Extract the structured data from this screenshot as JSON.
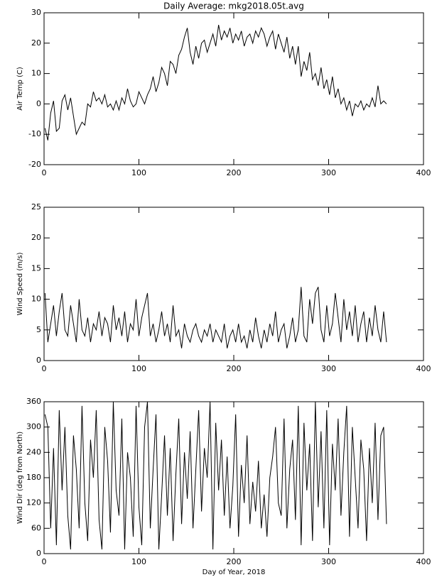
{
  "chart_data": [
    {
      "type": "line",
      "title": "Daily Average: mkg2018.05t.avg",
      "ylabel": "Air Temp (C)",
      "color": "#000000",
      "x": [
        1,
        4,
        7,
        10,
        13,
        16,
        19,
        22,
        25,
        28,
        31,
        34,
        37,
        40,
        43,
        46,
        49,
        52,
        55,
        58,
        61,
        64,
        67,
        70,
        73,
        76,
        79,
        82,
        85,
        88,
        91,
        94,
        97,
        100,
        103,
        106,
        109,
        112,
        115,
        118,
        121,
        124,
        127,
        130,
        133,
        136,
        139,
        142,
        145,
        148,
        151,
        154,
        157,
        160,
        163,
        166,
        169,
        172,
        175,
        178,
        181,
        184,
        187,
        190,
        193,
        196,
        199,
        202,
        205,
        208,
        211,
        214,
        217,
        220,
        223,
        226,
        229,
        232,
        235,
        238,
        241,
        244,
        247,
        250,
        253,
        256,
        259,
        262,
        265,
        268,
        271,
        274,
        277,
        280,
        283,
        286,
        289,
        292,
        295,
        298,
        301,
        304,
        307,
        310,
        313,
        316,
        319,
        322,
        325,
        328,
        331,
        334,
        337,
        340,
        343,
        346,
        349,
        352,
        355,
        358,
        361
      ],
      "values": [
        -8,
        -12,
        -3,
        1,
        -9,
        -8,
        1,
        3,
        -2,
        2,
        -4,
        -10,
        -8,
        -6,
        -7,
        0,
        -1,
        4,
        1,
        2,
        0,
        3,
        -1,
        0,
        -2,
        1,
        -2,
        2,
        0,
        5,
        1,
        -1,
        0,
        4,
        2,
        0,
        3,
        5,
        9,
        4,
        7,
        12,
        10,
        6,
        14,
        13,
        10,
        16,
        18,
        22,
        25,
        17,
        13,
        19,
        15,
        20,
        21,
        17,
        20,
        23,
        19,
        26,
        21,
        24,
        22,
        25,
        20,
        23,
        21,
        24,
        19,
        22,
        23,
        20,
        24,
        22,
        25,
        23,
        19,
        22,
        24,
        18,
        23,
        20,
        17,
        22,
        15,
        19,
        13,
        19,
        9,
        14,
        11,
        17,
        8,
        10,
        6,
        12,
        5,
        8,
        3,
        9,
        2,
        5,
        0,
        2,
        -2,
        1,
        -4,
        0,
        -1,
        1,
        -2,
        0,
        -1,
        2,
        -1,
        6,
        0,
        1,
        0
      ],
      "xlim": [
        0,
        400
      ],
      "xticks": [
        0,
        100,
        200,
        300,
        400
      ],
      "ylim": [
        -20,
        30
      ],
      "yticks": [
        -20,
        -10,
        0,
        10,
        20,
        30
      ]
    },
    {
      "type": "line",
      "ylabel": "Wind Speed (m/s)",
      "color": "#000000",
      "x": [
        1,
        4,
        7,
        10,
        13,
        16,
        19,
        22,
        25,
        28,
        31,
        34,
        37,
        40,
        43,
        46,
        49,
        52,
        55,
        58,
        61,
        64,
        67,
        70,
        73,
        76,
        79,
        82,
        85,
        88,
        91,
        94,
        97,
        100,
        103,
        106,
        109,
        112,
        115,
        118,
        121,
        124,
        127,
        130,
        133,
        136,
        139,
        142,
        145,
        148,
        151,
        154,
        157,
        160,
        163,
        166,
        169,
        172,
        175,
        178,
        181,
        184,
        187,
        190,
        193,
        196,
        199,
        202,
        205,
        208,
        211,
        214,
        217,
        220,
        223,
        226,
        229,
        232,
        235,
        238,
        241,
        244,
        247,
        250,
        253,
        256,
        259,
        262,
        265,
        268,
        271,
        274,
        277,
        280,
        283,
        286,
        289,
        292,
        295,
        298,
        301,
        304,
        307,
        310,
        313,
        316,
        319,
        322,
        325,
        328,
        331,
        334,
        337,
        340,
        343,
        346,
        349,
        352,
        355,
        358,
        361
      ],
      "values": [
        11,
        3,
        6,
        9,
        4,
        8,
        11,
        5,
        4,
        9,
        6,
        3,
        10,
        5,
        4,
        7,
        3,
        6,
        5,
        8,
        4,
        7,
        6,
        3,
        9,
        5,
        7,
        4,
        8,
        3,
        6,
        5,
        10,
        4,
        7,
        9,
        11,
        4,
        6,
        3,
        5,
        8,
        4,
        6,
        3,
        9,
        4,
        5,
        2,
        6,
        4,
        3,
        5,
        6,
        4,
        3,
        5,
        4,
        6,
        3,
        5,
        4,
        3,
        6,
        2,
        4,
        5,
        3,
        6,
        3,
        4,
        2,
        5,
        3,
        7,
        4,
        2,
        5,
        3,
        6,
        4,
        8,
        3,
        5,
        6,
        2,
        4,
        7,
        3,
        5,
        12,
        4,
        3,
        10,
        6,
        11,
        12,
        5,
        3,
        9,
        4,
        6,
        11,
        7,
        3,
        10,
        5,
        8,
        4,
        9,
        3,
        6,
        8,
        3,
        7,
        4,
        9,
        5,
        3,
        8,
        3
      ],
      "xlim": [
        0,
        400
      ],
      "xticks": [
        0,
        100,
        200,
        300,
        400
      ],
      "ylim": [
        0,
        25
      ],
      "yticks": [
        0,
        5,
        10,
        15,
        20,
        25
      ]
    },
    {
      "type": "line",
      "ylabel": "Wind Dir (deg from North)",
      "xlabel": "Day of Year, 2018",
      "color": "#000000",
      "x": [
        1,
        4,
        7,
        10,
        13,
        16,
        19,
        22,
        25,
        28,
        31,
        34,
        37,
        40,
        43,
        46,
        49,
        52,
        55,
        58,
        61,
        64,
        67,
        70,
        73,
        76,
        79,
        82,
        85,
        88,
        91,
        94,
        97,
        100,
        103,
        106,
        109,
        112,
        115,
        118,
        121,
        124,
        127,
        130,
        133,
        136,
        139,
        142,
        145,
        148,
        151,
        154,
        157,
        160,
        163,
        166,
        169,
        172,
        175,
        178,
        181,
        184,
        187,
        190,
        193,
        196,
        199,
        202,
        205,
        208,
        211,
        214,
        217,
        220,
        223,
        226,
        229,
        232,
        235,
        238,
        241,
        244,
        247,
        250,
        253,
        256,
        259,
        262,
        265,
        268,
        271,
        274,
        277,
        280,
        283,
        286,
        289,
        292,
        295,
        298,
        301,
        304,
        307,
        310,
        313,
        316,
        319,
        322,
        325,
        328,
        331,
        334,
        337,
        340,
        343,
        346,
        349,
        352,
        355,
        358,
        361
      ],
      "values": [
        330,
        300,
        60,
        250,
        20,
        340,
        150,
        300,
        90,
        10,
        280,
        200,
        60,
        350,
        120,
        30,
        270,
        180,
        340,
        80,
        10,
        300,
        220,
        50,
        360,
        150,
        90,
        320,
        10,
        240,
        180,
        40,
        350,
        110,
        20,
        300,
        360,
        60,
        200,
        330,
        10,
        140,
        280,
        90,
        250,
        30,
        190,
        320,
        70,
        240,
        130,
        290,
        60,
        200,
        340,
        100,
        250,
        180,
        360,
        10,
        310,
        150,
        270,
        90,
        230,
        60,
        160,
        330,
        40,
        210,
        120,
        280,
        70,
        170,
        100,
        220,
        60,
        140,
        40,
        180,
        230,
        300,
        120,
        90,
        320,
        60,
        200,
        270,
        80,
        350,
        20,
        310,
        150,
        260,
        30,
        360,
        110,
        290,
        60,
        340,
        20,
        260,
        150,
        320,
        90,
        240,
        350,
        40,
        300,
        180,
        60,
        270,
        200,
        30,
        250,
        120,
        310,
        80,
        280,
        300,
        70
      ],
      "xlim": [
        0,
        400
      ],
      "xticks": [
        0,
        100,
        200,
        300,
        400
      ],
      "ylim": [
        0,
        360
      ],
      "yticks": [
        0,
        60,
        120,
        180,
        240,
        300,
        360
      ]
    }
  ]
}
